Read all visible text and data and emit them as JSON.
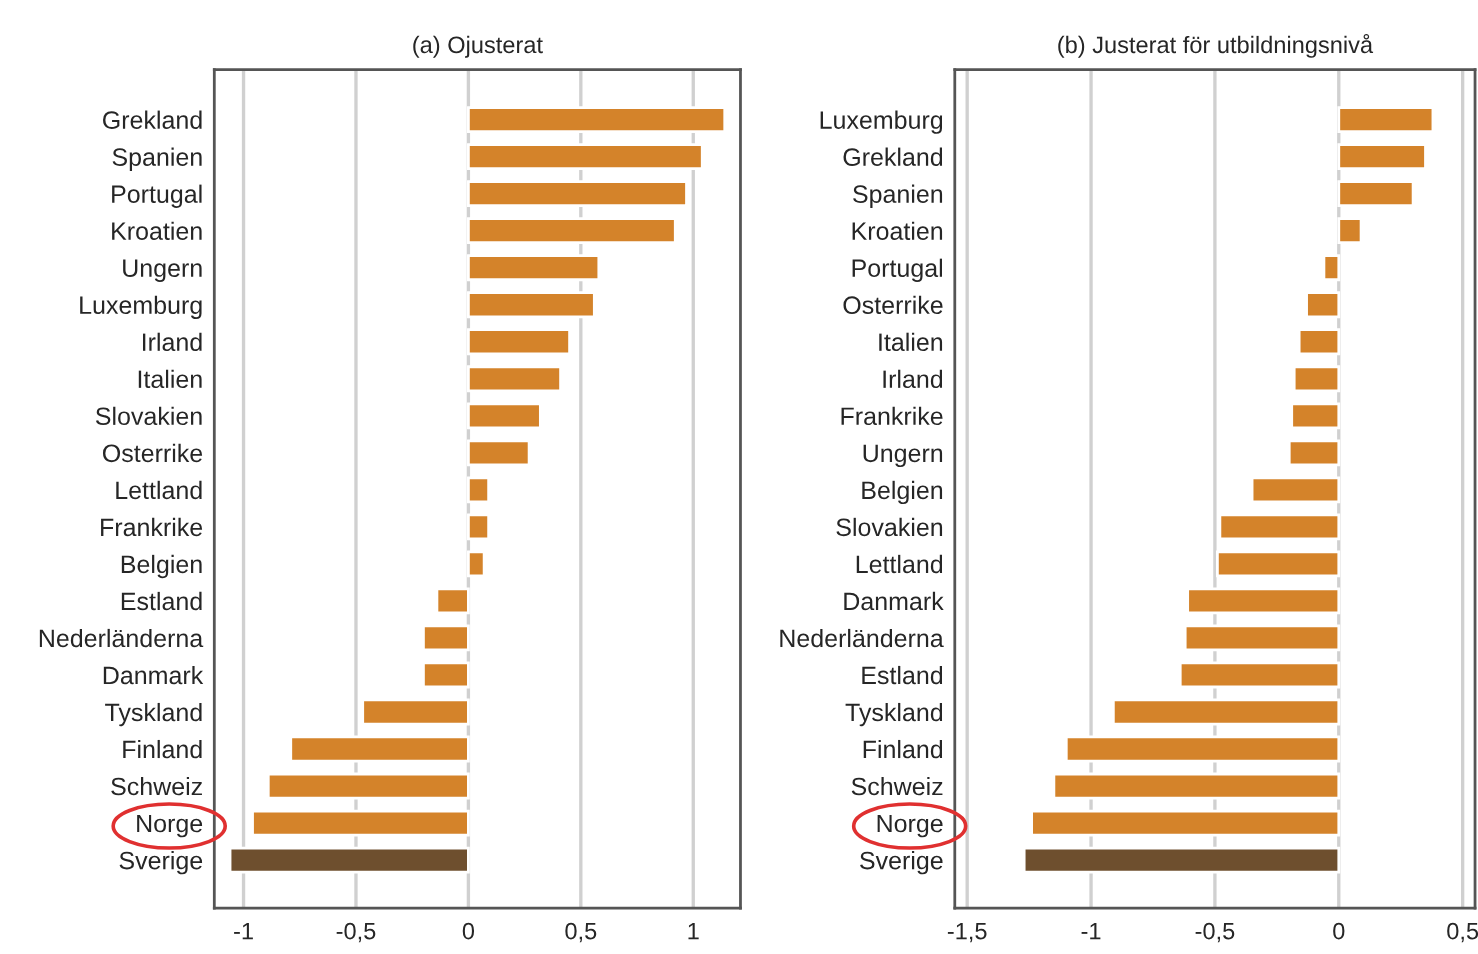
{
  "chart_data": [
    {
      "type": "bar",
      "orientation": "horizontal",
      "title": "(a) Ojusterat",
      "categories": [
        "Grekland",
        "Spanien",
        "Portugal",
        "Kroatien",
        "Ungern",
        "Luxemburg",
        "Irland",
        "Italien",
        "Slovakien",
        "Osterrike",
        "Lettland",
        "Frankrike",
        "Belgien",
        "Estland",
        "Nederländerna",
        "Danmark",
        "Tyskland",
        "Finland",
        "Schweiz",
        "Norge",
        "Sverige"
      ],
      "values": [
        1.14,
        1.04,
        0.97,
        0.92,
        0.58,
        0.56,
        0.45,
        0.41,
        0.32,
        0.27,
        0.09,
        0.09,
        0.07,
        -0.14,
        -0.2,
        -0.2,
        -0.47,
        -0.79,
        -0.89,
        -0.96,
        -1.06
      ],
      "colors": [
        "#d4832a",
        "#d4832a",
        "#d4832a",
        "#d4832a",
        "#d4832a",
        "#d4832a",
        "#d4832a",
        "#d4832a",
        "#d4832a",
        "#d4832a",
        "#d4832a",
        "#d4832a",
        "#d4832a",
        "#d4832a",
        "#d4832a",
        "#d4832a",
        "#d4832a",
        "#d4832a",
        "#d4832a",
        "#d4832a",
        "#6e4f2e"
      ],
      "xlim": [
        -1.13,
        1.21
      ],
      "xticks": [
        -1,
        {
          "value": -0.5,
          "label": "-0,5"
        },
        0,
        {
          "value": 0.5,
          "label": "0,5"
        },
        1
      ],
      "grid": "x"
    },
    {
      "type": "bar",
      "orientation": "horizontal",
      "title": "(b) Justerat för utbildningsnivå",
      "categories": [
        "Luxemburg",
        "Grekland",
        "Spanien",
        "Kroatien",
        "Portugal",
        "Osterrike",
        "Italien",
        "Irland",
        "Frankrike",
        "Ungern",
        "Belgien",
        "Slovakien",
        "Lettland",
        "Danmark",
        "Nederländerna",
        "Estland",
        "Tyskland",
        "Finland",
        "Schweiz",
        "Norge",
        "Sverige"
      ],
      "values": [
        0.38,
        0.35,
        0.3,
        0.09,
        -0.06,
        -0.13,
        -0.16,
        -0.18,
        -0.19,
        -0.2,
        -0.35,
        -0.48,
        -0.49,
        -0.61,
        -0.62,
        -0.64,
        -0.91,
        -1.1,
        -1.15,
        -1.24,
        -1.27
      ],
      "colors": [
        "#d4832a",
        "#d4832a",
        "#d4832a",
        "#d4832a",
        "#d4832a",
        "#d4832a",
        "#d4832a",
        "#d4832a",
        "#d4832a",
        "#d4832a",
        "#d4832a",
        "#d4832a",
        "#d4832a",
        "#d4832a",
        "#d4832a",
        "#d4832a",
        "#d4832a",
        "#d4832a",
        "#d4832a",
        "#d4832a",
        "#6e4f2e"
      ],
      "xlim": [
        -1.55,
        0.55
      ],
      "xticks": [
        {
          "value": -1.5,
          "label": "-1,5"
        },
        -1,
        {
          "value": -0.5,
          "label": "-0,5"
        },
        0,
        {
          "value": 0.5,
          "label": "0,5"
        }
      ],
      "grid": "x"
    }
  ]
}
